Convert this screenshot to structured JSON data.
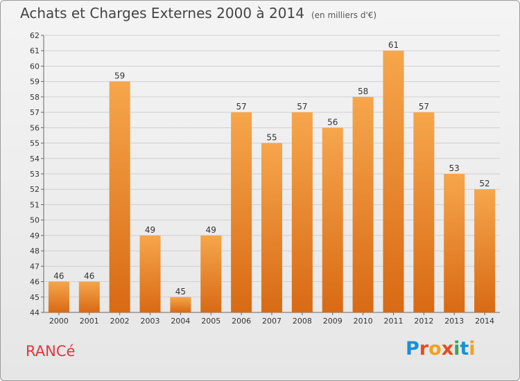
{
  "header": {
    "title": "Achats et Charges Externes 2000 à 2014",
    "subtitle": "(en milliers d'€)"
  },
  "footer": {
    "town": "RANCé",
    "logo": "Proxiti"
  },
  "logo_colors": [
    "#1a8fd6",
    "#e64b1e",
    "#f2a21a",
    "#e64b1e",
    "#34a853",
    "#1a8fd6",
    "#f2a21a"
  ],
  "colors": {
    "bar_top": "#f6a64c",
    "bar_bottom": "#d86a14",
    "grid": "#cfcfcf",
    "town": "#e4343c"
  },
  "chart_data": {
    "type": "bar",
    "title": "Achats et Charges Externes 2000 à 2014",
    "subtitle": "(en milliers d'€)",
    "categories": [
      "2000",
      "2001",
      "2002",
      "2003",
      "2004",
      "2005",
      "2006",
      "2007",
      "2008",
      "2009",
      "2010",
      "2011",
      "2012",
      "2013",
      "2014"
    ],
    "values": [
      46,
      46,
      59,
      49,
      45,
      49,
      57,
      55,
      57,
      56,
      58,
      61,
      57,
      53,
      52
    ],
    "ylim": [
      44,
      62
    ],
    "yticks": [
      44,
      45,
      46,
      47,
      48,
      49,
      50,
      51,
      52,
      53,
      54,
      55,
      56,
      57,
      58,
      59,
      60,
      61,
      62
    ],
    "grid": true,
    "data_labels": true
  }
}
